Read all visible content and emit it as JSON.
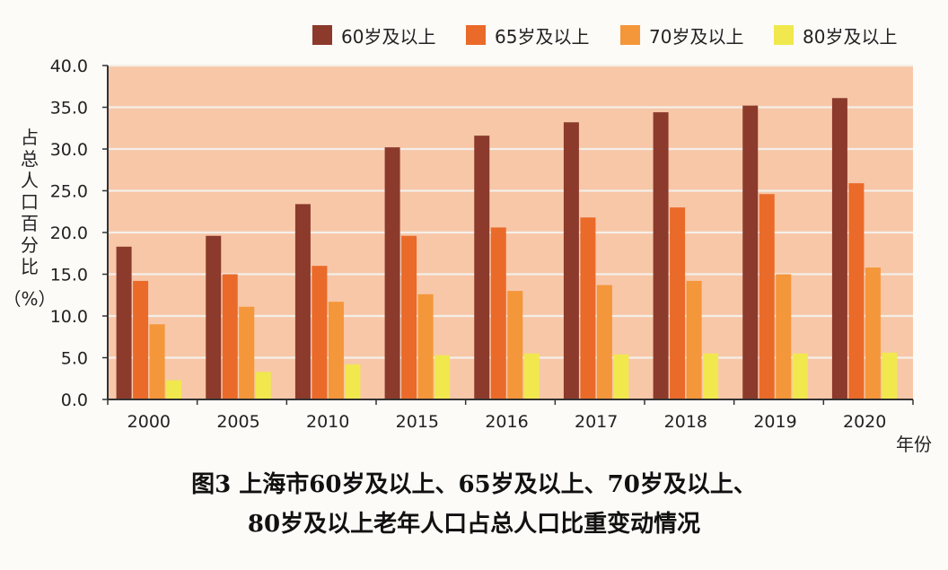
{
  "chart_data": {
    "type": "bar",
    "caption_line1": "图3  上海市60岁及以上、65岁及以上、70岁及以上、",
    "caption_line2": "80岁及以上老年人口占总人口比重变动情况",
    "ylabel": "占总人口百分比（%）",
    "xlabel": "年份",
    "categories": [
      "2000",
      "2005",
      "2010",
      "2015",
      "2016",
      "2017",
      "2018",
      "2019",
      "2020"
    ],
    "ylim": [
      0,
      40
    ],
    "yticks": [
      "0.0",
      "5.0",
      "10.0",
      "15.0",
      "20.0",
      "25.0",
      "30.0",
      "35.0",
      "40.0"
    ],
    "grid": true,
    "legend_position": "top-right",
    "series": [
      {
        "name": "60岁及以上",
        "color": "#8b3a2b",
        "values": [
          18.3,
          19.6,
          23.4,
          30.2,
          31.6,
          33.2,
          34.4,
          35.2,
          36.1
        ]
      },
      {
        "name": "65岁及以上",
        "color": "#ea6a2a",
        "values": [
          14.2,
          15.0,
          16.0,
          19.6,
          20.6,
          21.8,
          23.0,
          24.6,
          25.9
        ]
      },
      {
        "name": "70岁及以上",
        "color": "#f4963a",
        "values": [
          9.0,
          11.1,
          11.7,
          12.6,
          13.0,
          13.7,
          14.2,
          15.0,
          15.8
        ]
      },
      {
        "name": "80岁及以上",
        "color": "#f1e84e",
        "values": [
          2.3,
          3.3,
          4.2,
          5.3,
          5.5,
          5.4,
          5.5,
          5.5,
          5.6
        ]
      }
    ],
    "plot_background": "#f7c7a8",
    "grid_color": "#f4efe9"
  }
}
